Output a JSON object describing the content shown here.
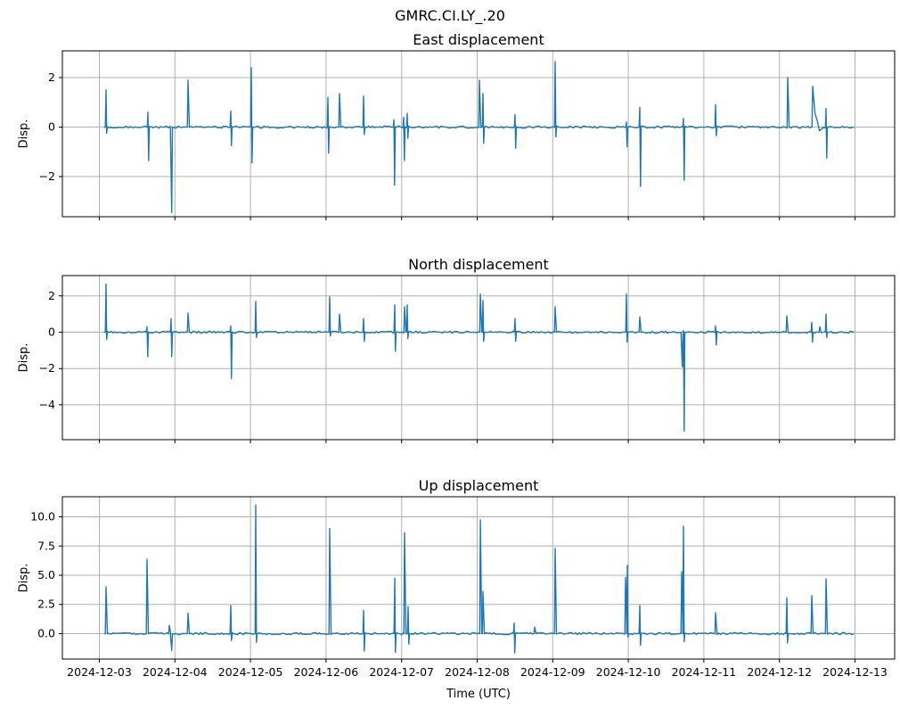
{
  "figure": {
    "suptitle": "GMRC.CI.LY_.20",
    "xlabel": "Time (UTC)",
    "ylabel": "Disp.",
    "x_tick_labels": [
      "2024-12-03",
      "2024-12-04",
      "2024-12-05",
      "2024-12-06",
      "2024-12-07",
      "2024-12-08",
      "2024-12-09",
      "2024-12-10",
      "2024-12-11",
      "2024-12-12",
      "2024-12-13"
    ],
    "colors": {
      "line": "#1f77b4",
      "grid": "#b0b0b0",
      "spine": "#000000",
      "text": "#000000",
      "background": "#ffffff"
    }
  },
  "chart_data": [
    {
      "type": "line",
      "title": "East displacement",
      "ylabel": "Disp.",
      "x_unit": "days since 2024-12-03 00:00 UTC",
      "xlim": [
        -0.49,
        10.53
      ],
      "ylim": [
        -3.62,
        3.08
      ],
      "yticks": [
        2,
        0,
        -2
      ],
      "ytick_labels": [
        "2",
        "0",
        "−2"
      ],
      "grid": true,
      "legend": "none",
      "baseline": 0,
      "data_span": [
        0.065,
        9.985
      ],
      "noise_amp": 0.045,
      "spikes": [
        {
          "t": 0.088,
          "up": 1.5,
          "down": -0.25
        },
        {
          "t": 0.643,
          "up": 0.6,
          "down": -1.35
        },
        {
          "t": 0.949,
          "down": -3.45
        },
        {
          "t": 1.173,
          "up": 1.9
        },
        {
          "t": 1.739,
          "up": 0.65,
          "down": -0.75
        },
        {
          "t": 2.011,
          "up": 2.4,
          "down": -1.45
        },
        {
          "t": 3.025,
          "up": 1.2,
          "down": -1.05
        },
        {
          "t": 3.178,
          "up": 1.35
        },
        {
          "t": 3.497,
          "up": 1.25,
          "down": -0.3
        },
        {
          "t": 3.898,
          "up": 0.3,
          "down": -2.35
        },
        {
          "t": 4.027,
          "up": 0.4,
          "down": -1.35
        },
        {
          "t": 4.074,
          "up": 0.55,
          "down": -0.45
        },
        {
          "t": 5.03,
          "up": 1.9
        },
        {
          "t": 5.077,
          "up": 1.35,
          "down": -0.65
        },
        {
          "t": 5.501,
          "up": 0.5,
          "down": -0.85
        },
        {
          "t": 6.032,
          "up": 2.65,
          "down": -0.4
        },
        {
          "t": 6.975,
          "up": 0.2,
          "down": -0.8
        },
        {
          "t": 7.152,
          "up": 0.8,
          "down": -2.4
        },
        {
          "t": 7.73,
          "up": 0.35,
          "down": -2.15
        },
        {
          "t": 8.155,
          "up": 0.9,
          "down": -0.35
        },
        {
          "t": 9.11,
          "up": 2.0
        },
        {
          "t": 9.44,
          "up": 1.65,
          "tail": [
            [
              0.03,
              0.55
            ],
            [
              0.06,
              0.27
            ],
            [
              0.09,
              -0.15
            ],
            [
              0.13,
              -0.05
            ]
          ]
        },
        {
          "t": 9.617,
          "up": 0.75,
          "down": -1.25
        }
      ]
    },
    {
      "type": "line",
      "title": "North displacement",
      "ylabel": "Disp.",
      "x_unit": "days since 2024-12-03 00:00 UTC",
      "xlim": [
        -0.49,
        10.53
      ],
      "ylim": [
        -5.92,
        3.12
      ],
      "yticks": [
        2,
        0,
        -2,
        -4
      ],
      "ytick_labels": [
        "2",
        "0",
        "−2",
        "−4"
      ],
      "grid": true,
      "legend": "none",
      "baseline": 0,
      "data_span": [
        0.065,
        9.985
      ],
      "noise_amp": 0.055,
      "spikes": [
        {
          "t": 0.088,
          "up": 2.65,
          "down": -0.4
        },
        {
          "t": 0.631,
          "up": 0.3,
          "down": -1.35
        },
        {
          "t": 0.949,
          "up": 0.75,
          "down": -1.35
        },
        {
          "t": 1.173,
          "up": 1.05
        },
        {
          "t": 1.739,
          "up": 0.35,
          "down": -2.55
        },
        {
          "t": 2.07,
          "up": 1.7,
          "down": -0.3
        },
        {
          "t": 3.048,
          "up": 1.95,
          "down": -0.2
        },
        {
          "t": 3.178,
          "up": 1.0
        },
        {
          "t": 3.497,
          "up": 0.75,
          "down": -0.5
        },
        {
          "t": 3.909,
          "up": 1.5,
          "down": -1.05
        },
        {
          "t": 4.039,
          "up": 1.4
        },
        {
          "t": 4.074,
          "up": 1.5,
          "down": -0.35
        },
        {
          "t": 5.042,
          "up": 2.1
        },
        {
          "t": 5.077,
          "up": 1.75,
          "down": -0.5
        },
        {
          "t": 5.501,
          "up": 0.75,
          "down": -0.5
        },
        {
          "t": 6.032,
          "up": 1.4
        },
        {
          "t": 6.975,
          "up": 2.1,
          "down": -0.55
        },
        {
          "t": 7.152,
          "up": 0.85
        },
        {
          "t": 7.706,
          "down": -1.9
        },
        {
          "t": 7.73,
          "up": 0.1,
          "down": -5.45
        },
        {
          "t": 8.155,
          "up": 0.35,
          "down": -0.7
        },
        {
          "t": 9.098,
          "up": 0.9
        },
        {
          "t": 9.428,
          "up": 0.55,
          "down": -0.55
        },
        {
          "t": 9.534,
          "up": 0.3
        },
        {
          "t": 9.617,
          "up": 1.0,
          "down": -0.3
        }
      ]
    },
    {
      "type": "line",
      "title": "Up displacement",
      "ylabel": "Disp.",
      "x_unit": "days since 2024-12-03 00:00 UTC",
      "xlim": [
        -0.49,
        10.53
      ],
      "ylim": [
        -2.18,
        11.72
      ],
      "yticks": [
        10,
        7.5,
        5,
        2.5,
        0
      ],
      "ytick_labels": [
        "10.0",
        "7.5",
        "5.0",
        "2.5",
        "0.0"
      ],
      "grid": true,
      "legend": "none",
      "baseline": 0,
      "data_span": [
        0.065,
        9.985
      ],
      "noise_amp": 0.09,
      "spikes": [
        {
          "t": 0.088,
          "up": 4.0
        },
        {
          "t": 0.631,
          "up": 6.35
        },
        {
          "t": 0.926,
          "up": 0.7
        },
        {
          "t": 0.949,
          "down": -1.45
        },
        {
          "t": 1.173,
          "up": 1.75
        },
        {
          "t": 1.739,
          "up": 2.4,
          "down": -0.6
        },
        {
          "t": 2.07,
          "up": 11.0,
          "down": -0.75
        },
        {
          "t": 3.048,
          "up": 9.0
        },
        {
          "t": 3.497,
          "up": 2.0,
          "down": -1.5
        },
        {
          "t": 3.909,
          "up": 4.75,
          "down": -1.6
        },
        {
          "t": 4.039,
          "up": 8.65
        },
        {
          "t": 4.086,
          "up": 2.3,
          "down": -0.9
        },
        {
          "t": 5.042,
          "up": 9.75
        },
        {
          "t": 5.077,
          "up": 3.6
        },
        {
          "t": 5.489,
          "up": 0.9,
          "down": -1.65
        },
        {
          "t": 5.761,
          "up": 0.55
        },
        {
          "t": 6.032,
          "up": 7.3
        },
        {
          "t": 6.963,
          "up": 4.8
        },
        {
          "t": 6.987,
          "up": 5.85,
          "down": -0.3
        },
        {
          "t": 7.152,
          "up": 2.4,
          "down": -1.0
        },
        {
          "t": 7.706,
          "up": 5.3
        },
        {
          "t": 7.73,
          "up": 9.2,
          "down": -0.7
        },
        {
          "t": 8.155,
          "up": 1.8
        },
        {
          "t": 9.098,
          "up": 3.05,
          "down": -0.8
        },
        {
          "t": 9.428,
          "up": 3.25
        },
        {
          "t": 9.617,
          "up": 4.7
        }
      ]
    }
  ]
}
